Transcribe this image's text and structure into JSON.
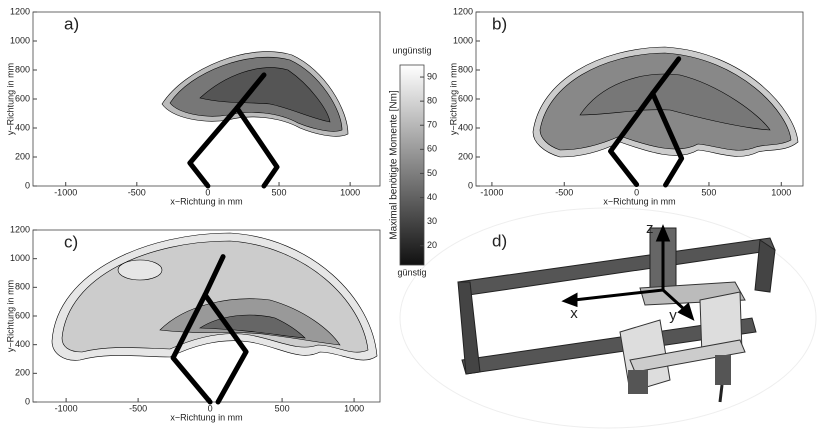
{
  "chart_data": [
    {
      "type": "line",
      "panel_label": "a)",
      "xlabel": "x−Richtung in mm",
      "ylabel": "y−Richtung in mm",
      "xlim": [
        -1230,
        1210
      ],
      "ylim": [
        0,
        1200
      ],
      "xticks": [
        -1000,
        -500,
        0,
        500,
        1000
      ],
      "yticks": [
        0,
        200,
        400,
        600,
        800,
        1000,
        1200
      ],
      "series": [
        {
          "color": "#000000",
          "x": [
            0,
            -127,
            204,
            394
          ],
          "y": [
            0,
            159,
            538,
            766
          ]
        },
        {
          "color": "#000000",
          "x": [
            394,
            486,
            204
          ],
          "y": [
            0,
            131,
            538
          ]
        }
      ]
    },
    {
      "type": "line",
      "panel_label": "b)",
      "xlabel": "x−Richtung in mm",
      "ylabel": "y−Richtung in mm",
      "xlim": [
        -1110,
        1150
      ],
      "ylim": [
        0,
        1200
      ],
      "xticks": [
        -1000,
        -500,
        0,
        500,
        1000
      ],
      "yticks": [
        0,
        200,
        400,
        600,
        800,
        1000,
        1200
      ],
      "series": [
        {
          "color": "#000000",
          "x": [
            0,
            -180,
            111,
            291
          ],
          "y": [
            10,
            240,
            639,
            877
          ]
        },
        {
          "color": "#000000",
          "x": [
            200,
            311,
            111
          ],
          "y": [
            7,
            190,
            639
          ]
        }
      ]
    },
    {
      "type": "line",
      "panel_label": "c)",
      "xlabel": "x−Richtung in mm",
      "ylabel": "y−Richtung in mm",
      "xlim": [
        -1230,
        1180
      ],
      "ylim": [
        0,
        1200
      ],
      "xticks": [
        -1000,
        -500,
        0,
        500,
        1000
      ],
      "yticks": [
        0,
        200,
        400,
        600,
        800,
        1000,
        1200
      ],
      "series": [
        {
          "color": "#000000",
          "x": [
            0,
            -257,
            -35,
            90
          ],
          "y": [
            0,
            308,
            748,
            1014
          ]
        },
        {
          "color": "#000000",
          "x": [
            55,
            250,
            -35
          ],
          "y": [
            0,
            350,
            748
          ]
        }
      ]
    },
    {
      "type": "colorbar",
      "label": "Maximal benötigte Momente [Nm]",
      "top_label": "ungünstig",
      "bottom_label": "günstig",
      "ylim": [
        12,
        95
      ],
      "yticks": [
        20,
        30,
        40,
        50,
        60,
        70,
        80,
        90
      ]
    }
  ],
  "panel_d": {
    "label": "d)",
    "axis_x": "x",
    "axis_y": "y",
    "axis_z": "z"
  }
}
